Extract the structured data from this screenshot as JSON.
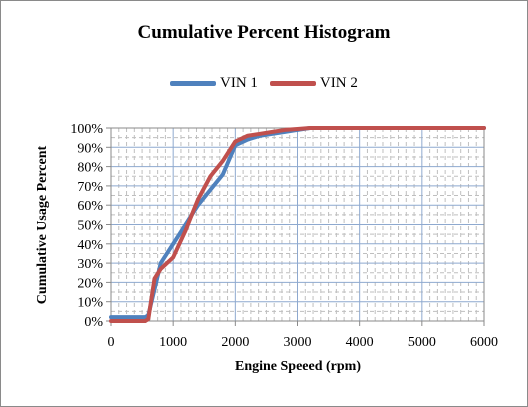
{
  "chart_data": {
    "type": "line",
    "title": "Cumulative Percent Histogram",
    "xlabel": "Engine Speeed (rpm)",
    "ylabel": "Cumulative Usage Percent",
    "xlim": [
      0,
      6000
    ],
    "ylim": [
      0,
      100
    ],
    "x_ticks": [
      0,
      1000,
      2000,
      3000,
      4000,
      5000,
      6000
    ],
    "y_ticks": [
      0,
      10,
      20,
      30,
      40,
      50,
      60,
      70,
      80,
      90,
      100
    ],
    "y_tick_labels": [
      "0%",
      "10%",
      "20%",
      "30%",
      "40%",
      "50%",
      "60%",
      "70%",
      "80%",
      "90%",
      "100%"
    ],
    "grid": true,
    "legend_position": "top",
    "series": [
      {
        "name": "VIN 1",
        "color": "#4f81bd",
        "x": [
          0,
          550,
          600,
          800,
          1000,
          1200,
          1400,
          1600,
          1800,
          2000,
          2200,
          2400,
          2600,
          2800,
          3000,
          3200,
          3600,
          4000,
          5000,
          6000
        ],
        "y": [
          2,
          2,
          3,
          30,
          40,
          50,
          60,
          68,
          76,
          91,
          94,
          96,
          97,
          98,
          99,
          100,
          100,
          100,
          100,
          100
        ]
      },
      {
        "name": "VIN 2",
        "color": "#c0504d",
        "x": [
          0,
          550,
          600,
          700,
          800,
          1000,
          1200,
          1400,
          1600,
          1800,
          2000,
          2200,
          2400,
          2600,
          2800,
          3000,
          3200,
          3600,
          4000,
          5000,
          6000
        ],
        "y": [
          0,
          0,
          1,
          22,
          27,
          33,
          47,
          63,
          75,
          83,
          93,
          96,
          97,
          98,
          99,
          99.5,
          100,
          100,
          100,
          100,
          100
        ]
      }
    ]
  }
}
